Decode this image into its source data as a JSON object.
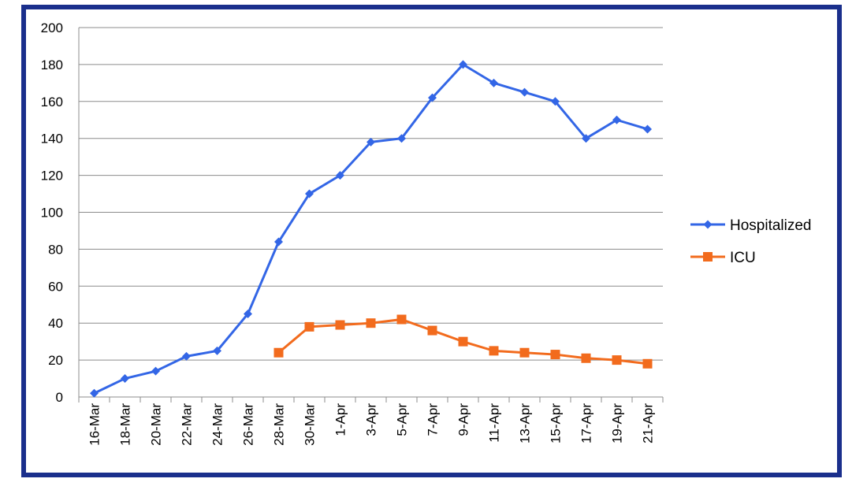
{
  "chart_data": {
    "type": "line",
    "title": "",
    "xlabel": "",
    "ylabel": "",
    "ylim": [
      0,
      200
    ],
    "yticks": [
      0,
      20,
      40,
      60,
      80,
      100,
      120,
      140,
      160,
      180,
      200
    ],
    "grid": true,
    "legend_position": "right",
    "categories": [
      "16-Mar",
      "18-Mar",
      "20-Mar",
      "22-Mar",
      "24-Mar",
      "26-Mar",
      "28-Mar",
      "30-Mar",
      "1-Apr",
      "3-Apr",
      "5-Apr",
      "7-Apr",
      "9-Apr",
      "11-Apr",
      "13-Apr",
      "15-Apr",
      "17-Apr",
      "19-Apr",
      "21-Apr"
    ],
    "series": [
      {
        "name": "Hospitalized",
        "color": "#3366e6",
        "marker": "diamond",
        "values": [
          2,
          10,
          14,
          22,
          25,
          45,
          84,
          110,
          120,
          138,
          140,
          162,
          180,
          170,
          165,
          160,
          140,
          150,
          145
        ]
      },
      {
        "name": "ICU",
        "color": "#f26b1d",
        "marker": "square",
        "values": [
          null,
          null,
          null,
          null,
          null,
          null,
          24,
          38,
          39,
          40,
          42,
          36,
          30,
          25,
          24,
          23,
          21,
          20,
          18
        ]
      }
    ]
  }
}
